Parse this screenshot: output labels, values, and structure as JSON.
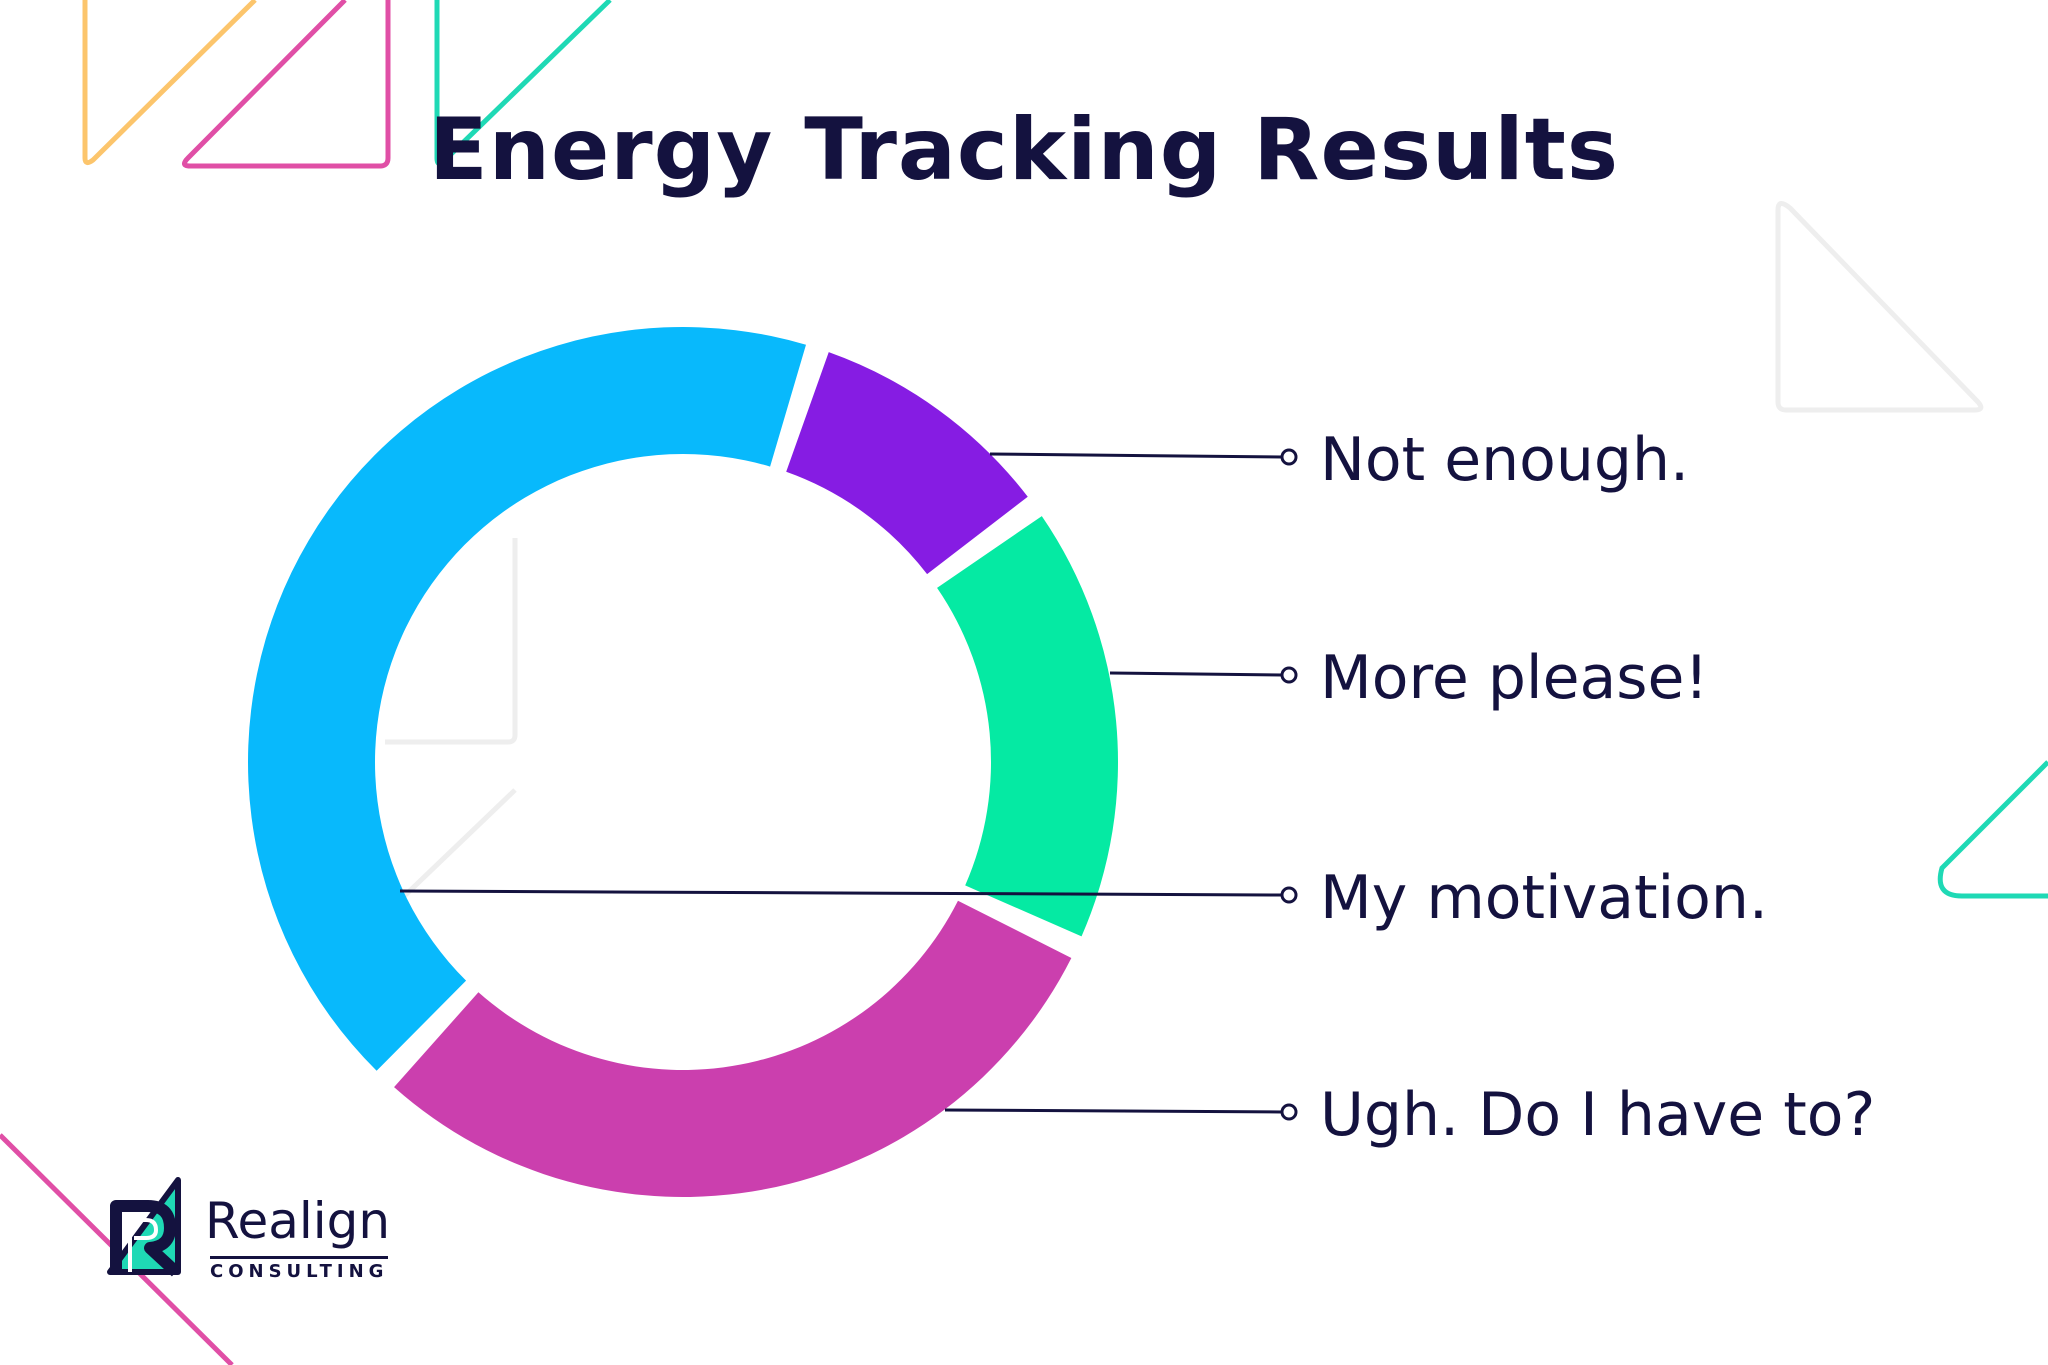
{
  "title": "Energy Tracking Results",
  "chart_data": {
    "type": "pie",
    "style": "donut",
    "title": "Energy Tracking Results",
    "legend_position": "right",
    "slices": [
      {
        "label": "Not enough.",
        "value": 10,
        "color": "#861ce3"
      },
      {
        "label": "More please!",
        "value": 17,
        "color": "#05eaa3"
      },
      {
        "label": "Ugh. Do I have to?",
        "value": 30,
        "color": "#cb3fae"
      },
      {
        "label": "My motivation.",
        "value": 43,
        "color": "#08b9fc"
      }
    ]
  },
  "brand": {
    "name": "Realign",
    "tagline": "CONSULTING"
  },
  "colors": {
    "text": "#14123f",
    "accent_yellow": "#fcc56c",
    "accent_pink": "#e04fa6",
    "accent_teal": "#1fd9b5",
    "ghost": "#eeeeee"
  }
}
